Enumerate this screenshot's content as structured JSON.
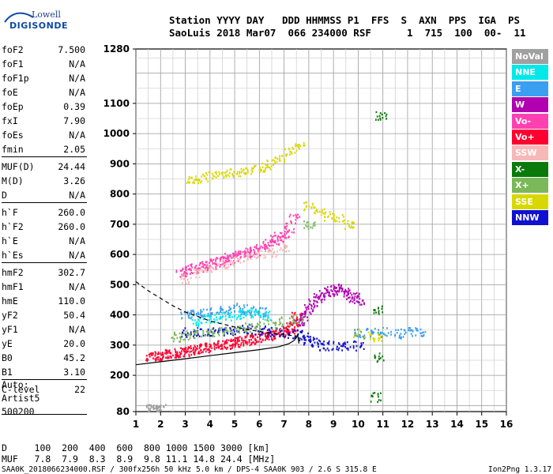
{
  "logo": {
    "line1": "Lowell",
    "line2": "DIGISONDE"
  },
  "header": {
    "row1": "Station YYYY DAY   DDD HHMMSS P1  FFS  S  AXN  PPS  IGA  PS",
    "row2": "SaoLuis 2018 Mar07  066 234000 RSF      1  715  100  00-  11"
  },
  "params": [
    {
      "name": "foF2",
      "value": "7.500"
    },
    {
      "name": "foF1",
      "value": "N/A"
    },
    {
      "name": "foF1p",
      "value": "N/A"
    },
    {
      "name": "foE",
      "value": "N/A"
    },
    {
      "name": "foEp",
      "value": "0.39"
    },
    {
      "name": "fxI",
      "value": "7.90"
    },
    {
      "name": "foEs",
      "value": "N/A"
    },
    {
      "name": "fmin",
      "value": "2.05"
    },
    {
      "name": "MUF(D)",
      "value": "24.44"
    },
    {
      "name": "M(D)",
      "value": "3.26"
    },
    {
      "name": "D",
      "value": "N/A"
    },
    {
      "name": "h`F",
      "value": "260.0"
    },
    {
      "name": "h`F2",
      "value": "260.0"
    },
    {
      "name": "h`E",
      "value": "N/A"
    },
    {
      "name": "h`Es",
      "value": "N/A"
    },
    {
      "name": "hmF2",
      "value": "302.7"
    },
    {
      "name": "hmF1",
      "value": "N/A"
    },
    {
      "name": "hmE",
      "value": "110.0"
    },
    {
      "name": "yF2",
      "value": "50.4"
    },
    {
      "name": "yF1",
      "value": "N/A"
    },
    {
      "name": "yE",
      "value": "20.0"
    },
    {
      "name": "B0",
      "value": "45.2"
    },
    {
      "name": "B1",
      "value": "3.10"
    },
    {
      "name": "C-level",
      "value": "22"
    }
  ],
  "notes": {
    "auto": "Auto:",
    "artist": "Artist5",
    "version": "500200"
  },
  "legend": [
    {
      "label": "NoVal",
      "color": "#a0a0a0"
    },
    {
      "label": "NNE",
      "color": "#00e8e8"
    },
    {
      "label": "E",
      "color": "#3a9ff0"
    },
    {
      "label": "W",
      "color": "#b000b0"
    },
    {
      "label": "Vo-",
      "color": "#ff40b0"
    },
    {
      "label": "Vo+",
      "color": "#ff0030"
    },
    {
      "label": "SSW",
      "color": "#f8b8b8"
    },
    {
      "label": "X-",
      "color": "#0a7a0a"
    },
    {
      "label": "X+",
      "color": "#7ab85a"
    },
    {
      "label": "SSE",
      "color": "#d8d800"
    },
    {
      "label": "NNW",
      "color": "#1010d0"
    }
  ],
  "bottom": {
    "d_row": "D     100  200  400  600  800 1000 1500 3000 [km]",
    "muf_row": "MUF   7.8  7.9  8.3  8.9  9.8 11.1 14.8 24.4 [MHz]",
    "footer_left": "SAA0K_2018066234000.RSF / 300fx256h 50 kHz 5.0 km / DPS-4 SAA0K 903 / 2.6 S 315.8 E",
    "footer_right": "Ion2Png 1.3.17"
  },
  "chart_data": {
    "type": "scatter",
    "xlim": [
      1,
      16
    ],
    "ylim": [
      80,
      1280
    ],
    "x_ticks": [
      1,
      2,
      3,
      4,
      5,
      6,
      7,
      8,
      9,
      10,
      11,
      12,
      13,
      14,
      15,
      16
    ],
    "y_ticks": [
      80,
      200,
      300,
      400,
      500,
      600,
      700,
      800,
      900,
      1000,
      1100,
      1280
    ],
    "grid": true,
    "legend_position": "right",
    "series": [
      {
        "name": "Vo+",
        "color": "#ff0030",
        "x": [
          1.6,
          1.8,
          2.0,
          2.2,
          2.4,
          2.6,
          2.8,
          3.0,
          3.2,
          3.4,
          3.6,
          3.8,
          4.0,
          4.2,
          4.4,
          4.6,
          4.8,
          5.0,
          5.2,
          5.4,
          5.6,
          5.8,
          6.0,
          6.2,
          6.4,
          6.6,
          6.8,
          7.0,
          7.2,
          7.3,
          7.4,
          7.5
        ],
        "y": [
          265,
          266,
          268,
          270,
          272,
          275,
          278,
          281,
          284,
          287,
          290,
          293,
          296,
          299,
          302,
          305,
          308,
          311,
          314,
          317,
          320,
          323,
          326,
          330,
          334,
          338,
          343,
          348,
          356,
          365,
          380,
          395
        ]
      },
      {
        "name": "Vo-",
        "color": "#ff40b0",
        "x": [
          2.8,
          3.0,
          3.2,
          3.4,
          3.6,
          3.8,
          4.0,
          4.2,
          4.4,
          4.6,
          4.8,
          5.0,
          5.2,
          5.4,
          5.6,
          5.8,
          6.0,
          6.2,
          6.4,
          6.6,
          6.8,
          7.0,
          7.2,
          7.4
        ],
        "y": [
          540,
          545,
          550,
          555,
          560,
          565,
          570,
          575,
          580,
          585,
          590,
          595,
          600,
          605,
          610,
          615,
          620,
          630,
          640,
          650,
          660,
          670,
          690,
          720
        ]
      },
      {
        "name": "W",
        "color": "#b000b0",
        "x": [
          7.6,
          7.8,
          8.0,
          8.2,
          8.4,
          8.6,
          8.8,
          9.0,
          9.2,
          9.4,
          9.6,
          9.8,
          10.0
        ],
        "y": [
          380,
          400,
          420,
          440,
          460,
          470,
          480,
          485,
          490,
          480,
          470,
          460,
          450
        ]
      },
      {
        "name": "NNW",
        "color": "#1010d0",
        "x": [
          3.0,
          3.5,
          4.0,
          4.5,
          5.0,
          5.5,
          6.0,
          6.5,
          7.0,
          7.5,
          7.8,
          8.0,
          8.3,
          8.6,
          9.0,
          9.5,
          10.0
        ],
        "y": [
          345,
          345,
          348,
          350,
          352,
          355,
          350,
          345,
          340,
          338,
          330,
          320,
          310,
          300,
          300,
          300,
          300
        ]
      },
      {
        "name": "SSE",
        "color": "#d8d800",
        "x": [
          3.2,
          3.6,
          4.0,
          4.4,
          4.8,
          5.2,
          5.6,
          6.0,
          6.4,
          6.8,
          7.2,
          7.6,
          8.0,
          8.4,
          8.8,
          9.2,
          9.6,
          10.0,
          10.4,
          10.8
        ],
        "y": [
          850,
          855,
          860,
          865,
          870,
          875,
          880,
          890,
          900,
          920,
          940,
          960,
          760,
          740,
          730,
          720,
          700,
          340,
          330,
          330
        ]
      },
      {
        "name": "E",
        "color": "#3a9ff0",
        "x": [
          3.0,
          3.4,
          3.8,
          4.2,
          4.6,
          5.0,
          5.4,
          5.8,
          6.2,
          10.0,
          10.5,
          11.0,
          11.5,
          12.0,
          12.5
        ],
        "y": [
          400,
          405,
          410,
          415,
          420,
          425,
          420,
          415,
          410,
          340,
          345,
          345,
          340,
          345,
          345
        ]
      },
      {
        "name": "X+",
        "color": "#7ab85a",
        "x": [
          2.6,
          3.0,
          3.5,
          4.0,
          4.5,
          5.0,
          5.5,
          6.0,
          6.5,
          7.0,
          7.5,
          8.0
        ],
        "y": [
          330,
          335,
          340,
          345,
          350,
          355,
          360,
          365,
          370,
          380,
          390,
          700
        ]
      },
      {
        "name": "NNE",
        "color": "#00e8e8",
        "x": [
          3.4,
          3.8,
          4.2,
          4.6,
          5.0,
          5.4,
          5.8,
          6.2
        ],
        "y": [
          380,
          385,
          390,
          395,
          400,
          405,
          410,
          400
        ]
      },
      {
        "name": "SSW",
        "color": "#f8b8b8",
        "x": [
          3.0,
          3.5,
          4.0,
          4.5,
          5.0,
          5.5,
          6.0,
          6.5,
          7.0
        ],
        "y": [
          520,
          540,
          560,
          570,
          580,
          590,
          600,
          610,
          620
        ]
      },
      {
        "name": "X-",
        "color": "#0a7a0a",
        "x": [
          10.7,
          10.8,
          10.8,
          10.9
        ],
        "y": [
          130,
          260,
          420,
          1060
        ]
      },
      {
        "name": "NoVal",
        "color": "#a0a0a0",
        "x": [
          1.6,
          1.7,
          1.8,
          2.0
        ],
        "y": [
          90,
          90,
          90,
          90
        ]
      }
    ],
    "profile": {
      "solid_x": [
        1.0,
        2.0,
        3.0,
        4.0,
        5.0,
        6.0,
        6.8,
        7.2,
        7.4,
        7.5,
        7.55,
        7.6
      ],
      "solid_y": [
        235,
        245,
        255,
        265,
        275,
        285,
        295,
        305,
        315,
        325,
        335,
        305
      ],
      "dashed_x": [
        1.0,
        1.5,
        2.0,
        2.5,
        3.0,
        3.5,
        4.0,
        4.5,
        5.0,
        5.5,
        6.0,
        6.5,
        7.0,
        7.5
      ],
      "dashed_y": [
        510,
        480,
        455,
        430,
        410,
        395,
        380,
        370,
        360,
        352,
        345,
        340,
        335,
        330
      ]
    }
  }
}
